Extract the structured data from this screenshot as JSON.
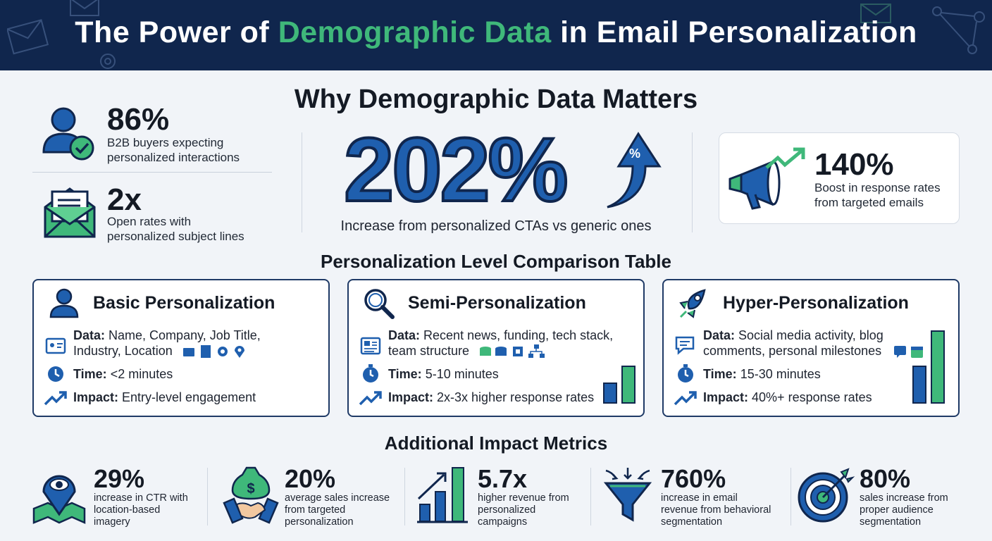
{
  "header": {
    "title_part1": "The Power of ",
    "title_highlight": "Demographic Data",
    "title_part2": " in Email Personalization"
  },
  "why": {
    "heading": "Why Demographic Data Matters",
    "left_stats": [
      {
        "value": "86%",
        "desc_line1": "B2B buyers expecting",
        "desc_line2": "personalized interactions",
        "icon": "user-check-icon"
      },
      {
        "value": "2x",
        "desc_line1": "Open rates with",
        "desc_line2": "personalized subject lines",
        "icon": "envelope-icon"
      }
    ],
    "center": {
      "value": "202%",
      "arrow_label": "%",
      "desc": "Increase from personalized CTAs vs generic ones"
    },
    "right": {
      "value": "140%",
      "desc_line1": "Boost in response rates",
      "desc_line2": "from targeted emails",
      "icon": "megaphone-icon"
    }
  },
  "comparison": {
    "heading": "Personalization Level Comparison Table",
    "cards": [
      {
        "title": "Basic Personalization",
        "data_label": "Data:",
        "data_line1": "Name, Company, Job Title,",
        "data_line2": "Industry, Location",
        "time_label": "Time:",
        "time_value": "<2 minutes",
        "impact_label": "Impact:",
        "impact_value": "Entry-level engagement"
      },
      {
        "title": "Semi-Personalization",
        "data_label": "Data:",
        "data_line1": "Recent news, funding, tech stack,",
        "data_line2": "team structure",
        "time_label": "Time:",
        "time_value": "5-10 minutes",
        "impact_label": "Impact:",
        "impact_value": "2x-3x higher response rates"
      },
      {
        "title": "Hyper-Personalization",
        "data_label": "Data:",
        "data_line1": "Social media activity, blog",
        "data_line2": "comments, personal milestones",
        "time_label": "Time:",
        "time_value": "15-30 minutes",
        "impact_label": "Impact:",
        "impact_value": "40%+ response rates"
      }
    ]
  },
  "additional": {
    "heading": "Additional Impact Metrics",
    "metrics": [
      {
        "value": "29%",
        "line1": "increase in CTR with",
        "line2": "location-based",
        "line3": "imagery",
        "icon": "map-pin-eye-icon"
      },
      {
        "value": "20%",
        "line1": "average sales increase",
        "line2": "from targeted",
        "line3": "personalization",
        "icon": "money-handshake-icon"
      },
      {
        "value": "5.7x",
        "line1": "higher revenue from",
        "line2": "personalized",
        "line3": "campaigns",
        "icon": "bar-chart-growth-icon"
      },
      {
        "value": "760%",
        "line1": "increase in email",
        "line2": "revenue from behavioral",
        "line3": "segmentation",
        "icon": "funnel-icon"
      },
      {
        "value": "80%",
        "line1": "sales increase from",
        "line2": "proper audience",
        "line3": "segmentation",
        "icon": "target-icon"
      }
    ]
  },
  "colors": {
    "navy": "#10264d",
    "blue": "#1f5fae",
    "green": "#3fb87a",
    "dark": "#141a24"
  }
}
